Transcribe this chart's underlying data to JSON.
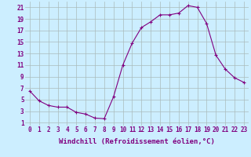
{
  "x": [
    0,
    1,
    2,
    3,
    4,
    5,
    6,
    7,
    8,
    9,
    10,
    11,
    12,
    13,
    14,
    15,
    16,
    17,
    18,
    19,
    20,
    21,
    22,
    23
  ],
  "y": [
    6.5,
    4.8,
    4.0,
    3.7,
    3.7,
    2.8,
    2.5,
    1.8,
    1.7,
    5.5,
    11.0,
    14.8,
    17.5,
    18.5,
    19.7,
    19.7,
    20.0,
    21.3,
    21.0,
    18.2,
    12.7,
    10.3,
    8.8,
    8.0
  ],
  "line_color": "#800080",
  "marker": "+",
  "marker_size": 3,
  "marker_edge_width": 0.8,
  "background_color": "#cceeff",
  "grid_color": "#aabbbb",
  "xlabel": "Windchill (Refroidissement éolien,°C)",
  "ylabel": "",
  "xlim_min": -0.5,
  "xlim_max": 23.5,
  "ylim_min": 0.5,
  "ylim_max": 22,
  "xticks": [
    0,
    1,
    2,
    3,
    4,
    5,
    6,
    7,
    8,
    9,
    10,
    11,
    12,
    13,
    14,
    15,
    16,
    17,
    18,
    19,
    20,
    21,
    22,
    23
  ],
  "yticks": [
    1,
    3,
    5,
    7,
    9,
    11,
    13,
    15,
    17,
    19,
    21
  ],
  "xlabel_fontsize": 6.5,
  "tick_fontsize": 5.5,
  "line_width": 0.8
}
